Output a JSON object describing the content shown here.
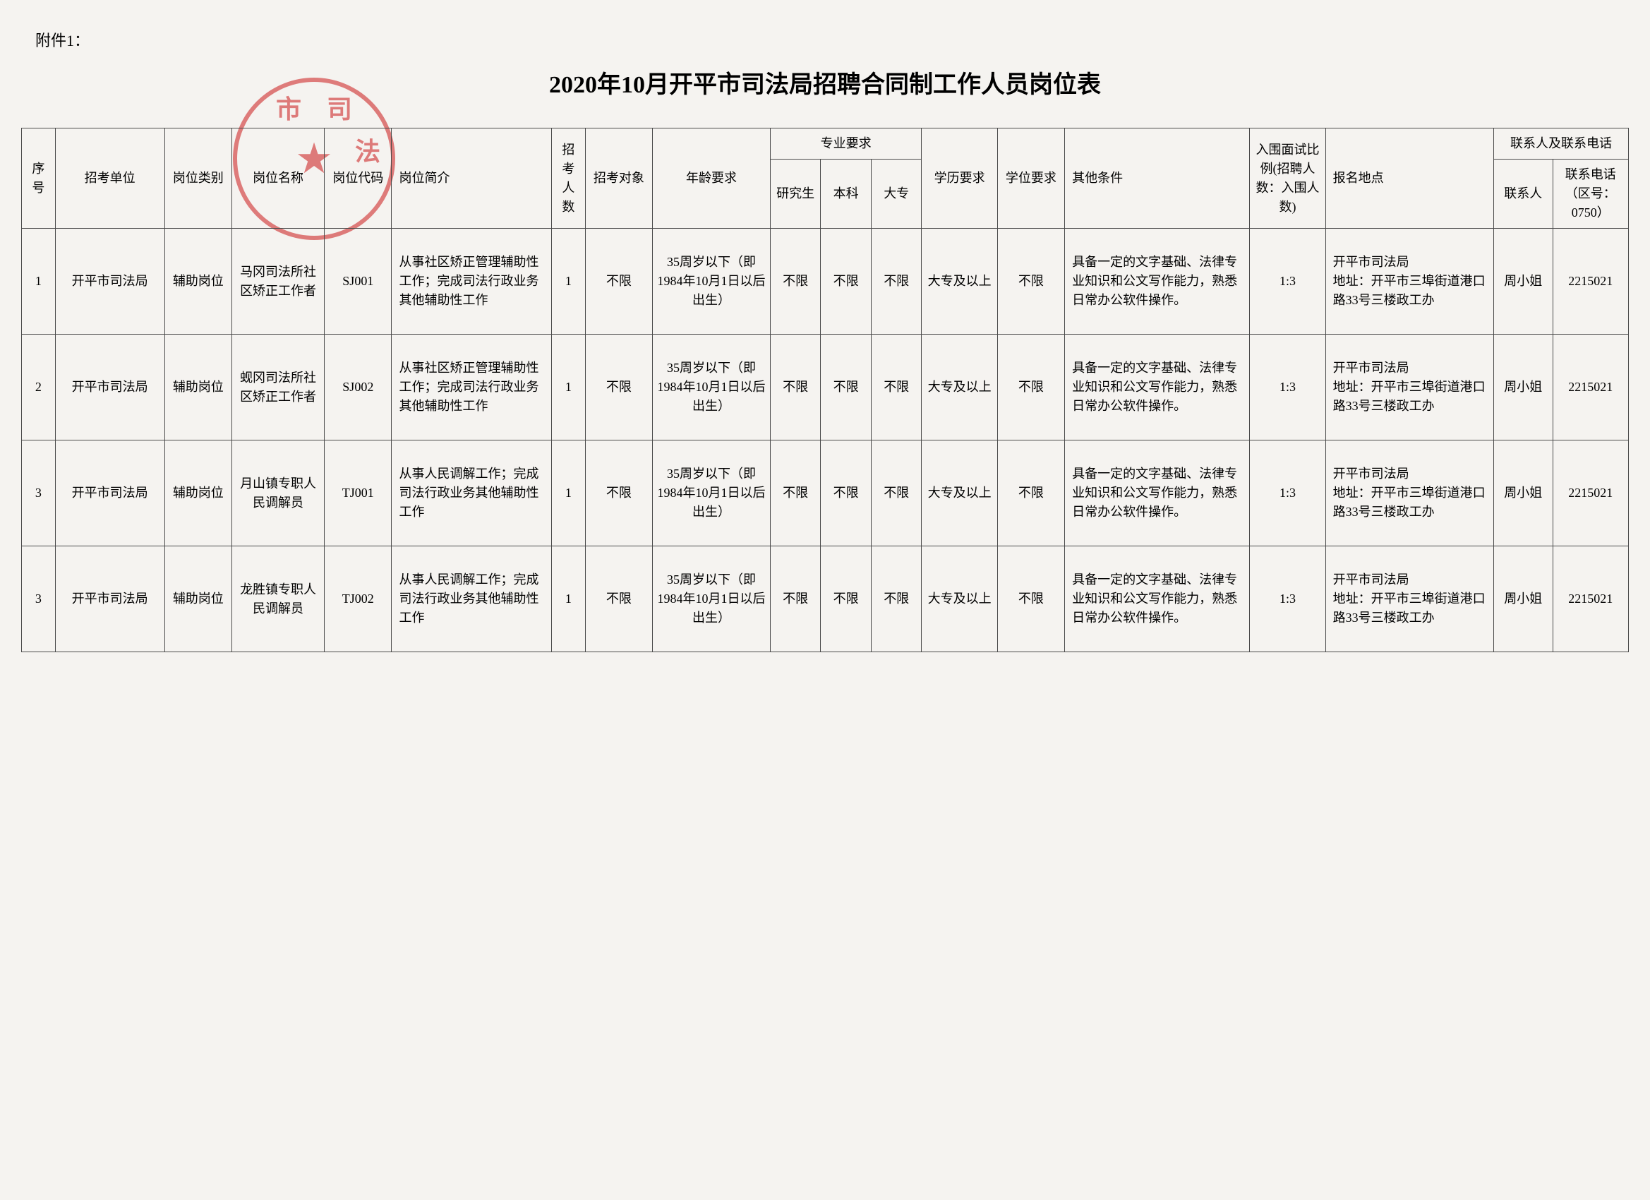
{
  "attachment_label": "附件1：",
  "title": "2020年10月开平市司法局招聘合同制工作人员岗位表",
  "seal": {
    "chars": [
      "市",
      "司",
      "法"
    ],
    "star": "★"
  },
  "headers": {
    "seq": "序号",
    "unit": "招考单位",
    "category": "岗位类别",
    "pos_name": "岗位名称",
    "pos_code": "岗位代码",
    "pos_desc": "岗位简介",
    "count": "招考人数",
    "object": "招考对象",
    "age": "年龄要求",
    "major_req": "专业要求",
    "grad": "研究生",
    "bachelor": "本科",
    "associate": "大专",
    "education": "学历要求",
    "degree": "学位要求",
    "other": "其他条件",
    "ratio": "入围面试比例(招聘人数：入围人数)",
    "location": "报名地点",
    "contact_group": "联系人及联系电话",
    "contact_person": "联系人",
    "contact_phone": "联系电话（区号：0750）"
  },
  "rows": [
    {
      "seq": "1",
      "unit": "开平市司法局",
      "category": "辅助岗位",
      "pos_name": "马冈司法所社区矫正工作者",
      "pos_code": "SJ001",
      "pos_desc": "从事社区矫正管理辅助性工作；完成司法行政业务其他辅助性工作",
      "count": "1",
      "object": "不限",
      "age": "35周岁以下（即1984年10月1日以后出生）",
      "grad": "不限",
      "bachelor": "不限",
      "associate": "不限",
      "education": "大专及以上",
      "degree": "不限",
      "other": "具备一定的文字基础、法律专业知识和公文写作能力，熟悉日常办公软件操作。",
      "ratio": "1:3",
      "location": "开平市司法局\n地址：开平市三埠街道港口路33号三楼政工办",
      "contact_person": "周小姐",
      "contact_phone": "2215021"
    },
    {
      "seq": "2",
      "unit": "开平市司法局",
      "category": "辅助岗位",
      "pos_name": "蚬冈司法所社区矫正工作者",
      "pos_code": "SJ002",
      "pos_desc": "从事社区矫正管理辅助性工作；完成司法行政业务其他辅助性工作",
      "count": "1",
      "object": "不限",
      "age": "35周岁以下（即1984年10月1日以后出生）",
      "grad": "不限",
      "bachelor": "不限",
      "associate": "不限",
      "education": "大专及以上",
      "degree": "不限",
      "other": "具备一定的文字基础、法律专业知识和公文写作能力，熟悉日常办公软件操作。",
      "ratio": "1:3",
      "location": "开平市司法局\n地址：开平市三埠街道港口路33号三楼政工办",
      "contact_person": "周小姐",
      "contact_phone": "2215021"
    },
    {
      "seq": "3",
      "unit": "开平市司法局",
      "category": "辅助岗位",
      "pos_name": "月山镇专职人民调解员",
      "pos_code": "TJ001",
      "pos_desc": "从事人民调解工作；完成司法行政业务其他辅助性工作",
      "count": "1",
      "object": "不限",
      "age": "35周岁以下（即1984年10月1日以后出生）",
      "grad": "不限",
      "bachelor": "不限",
      "associate": "不限",
      "education": "大专及以上",
      "degree": "不限",
      "other": "具备一定的文字基础、法律专业知识和公文写作能力，熟悉日常办公软件操作。",
      "ratio": "1:3",
      "location": "开平市司法局\n地址：开平市三埠街道港口路33号三楼政工办",
      "contact_person": "周小姐",
      "contact_phone": "2215021"
    },
    {
      "seq": "3",
      "unit": "开平市司法局",
      "category": "辅助岗位",
      "pos_name": "龙胜镇专职人民调解员",
      "pos_code": "TJ002",
      "pos_desc": "从事人民调解工作；完成司法行政业务其他辅助性工作",
      "count": "1",
      "object": "不限",
      "age": "35周岁以下（即1984年10月1日以后出生）",
      "grad": "不限",
      "bachelor": "不限",
      "associate": "不限",
      "education": "大专及以上",
      "degree": "不限",
      "other": "具备一定的文字基础、法律专业知识和公文写作能力，熟悉日常办公软件操作。",
      "ratio": "1:3",
      "location": "开平市司法局\n地址：开平市三埠街道港口路33号三楼政工办",
      "contact_person": "周小姐",
      "contact_phone": "2215021"
    }
  ],
  "styling": {
    "page_bg": "#f5f3f0",
    "border_color": "#4a4a4a",
    "seal_color": "#d13a3a",
    "title_fontsize": 34,
    "header_fontsize": 18,
    "cell_fontsize": 18,
    "font_family": "SimSun"
  }
}
